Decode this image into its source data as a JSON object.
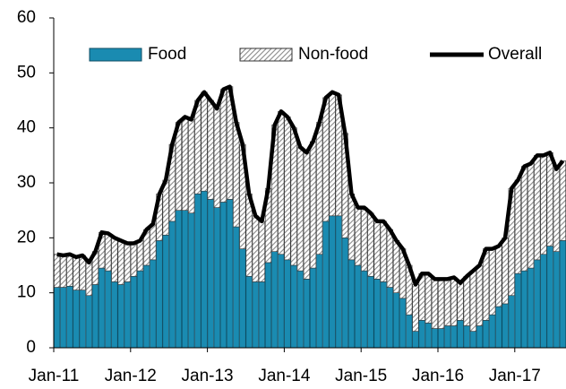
{
  "chart_data": {
    "type": "stacked_bar_line",
    "categories": [
      "Jan-11",
      null,
      null,
      null,
      null,
      null,
      null,
      null,
      null,
      null,
      null,
      null,
      "Jan-12",
      null,
      null,
      null,
      null,
      null,
      null,
      null,
      null,
      null,
      null,
      null,
      "Jan-13",
      null,
      null,
      null,
      null,
      null,
      null,
      null,
      null,
      null,
      null,
      null,
      "Jan-14",
      null,
      null,
      null,
      null,
      null,
      null,
      null,
      null,
      null,
      null,
      null,
      "Jan-15",
      null,
      null,
      null,
      null,
      null,
      null,
      null,
      null,
      null,
      null,
      null,
      "Jan-16",
      null,
      null,
      null,
      null,
      null,
      null,
      null,
      null,
      null,
      null,
      null,
      "Jan-17",
      null,
      null,
      null,
      null,
      null,
      null,
      null
    ],
    "series": [
      {
        "name": "Food",
        "color": "#1a8bb1",
        "values": [
          11,
          11,
          11.2,
          10.5,
          10.5,
          9.5,
          11.5,
          14.5,
          14,
          12,
          11.5,
          12,
          13,
          14,
          15,
          16,
          19.5,
          20.5,
          23,
          25,
          25,
          24.5,
          28,
          28.5,
          27,
          25.5,
          26.5,
          27,
          22,
          18,
          13,
          12,
          12,
          15.5,
          17.5,
          17,
          16,
          15,
          14,
          12.5,
          14.5,
          17,
          23,
          24,
          24,
          20,
          16,
          15,
          14,
          13,
          12.5,
          12,
          11,
          10,
          9,
          6,
          3,
          5,
          4.5,
          3.5,
          3.5,
          4,
          4,
          5,
          4,
          3,
          4,
          5,
          6,
          7.5,
          8,
          9.5,
          13.5,
          14,
          14.5,
          16,
          17,
          18.5,
          17.5,
          19.5
        ]
      },
      {
        "name": "Non-food",
        "color": "#9a9a9a",
        "values": [
          6,
          5.8,
          5.8,
          6,
          6.3,
          6,
          6,
          6.5,
          6.8,
          8,
          8,
          7,
          6,
          5.5,
          6.5,
          6.5,
          8.5,
          10,
          14,
          16,
          17,
          17,
          17,
          18,
          18,
          18,
          20.5,
          20.5,
          19,
          19,
          15,
          12,
          11,
          13.5,
          23,
          26,
          26,
          25,
          22.5,
          23,
          23,
          24,
          22.5,
          22.5,
          22,
          19,
          12,
          10.5,
          11.5,
          11.5,
          10.5,
          11,
          10.5,
          9.5,
          9,
          9,
          8.5,
          8.5,
          9,
          9,
          9,
          8.5,
          8.8,
          6.8,
          9,
          11,
          11,
          13,
          12,
          11,
          12,
          19.5,
          17,
          19,
          19,
          19,
          18,
          17,
          15,
          14.5
        ]
      },
      {
        "name": "Overall",
        "color": "#000000",
        "values": [
          17,
          16.8,
          17,
          16.5,
          16.8,
          15.5,
          17.5,
          21,
          20.8,
          20,
          19.5,
          19,
          19,
          19.5,
          21.5,
          22.5,
          28,
          30.5,
          37,
          41,
          42,
          41.5,
          45,
          46.5,
          45,
          43.5,
          47,
          47.5,
          41,
          37,
          28,
          24,
          23,
          29,
          40.5,
          43,
          42,
          40,
          36.5,
          35.5,
          37.5,
          41,
          45.5,
          46.5,
          46,
          39,
          28,
          25.5,
          25.5,
          24.5,
          23,
          23,
          21.5,
          19.5,
          18,
          15,
          11.5,
          13.5,
          13.5,
          12.5,
          12.5,
          12.5,
          12.8,
          11.8,
          13,
          14,
          15,
          18,
          18,
          18.5,
          20,
          29,
          30.5,
          33,
          33.5,
          35,
          35,
          35.5,
          32.5,
          34
        ]
      }
    ],
    "ylim": [
      0,
      60
    ],
    "yticks": [
      0,
      10,
      20,
      30,
      40,
      50,
      60
    ],
    "grid": false,
    "legend": "top"
  }
}
